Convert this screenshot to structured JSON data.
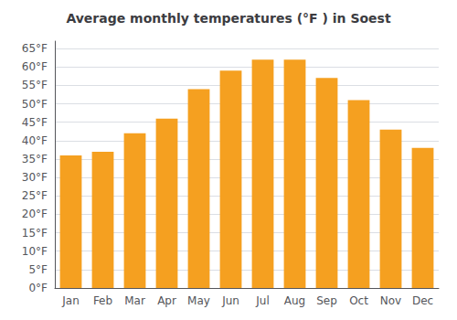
{
  "chart_data": {
    "type": "bar",
    "title": "Average monthly temperatures (°F ) in Soest",
    "categories": [
      "Jan",
      "Feb",
      "Mar",
      "Apr",
      "May",
      "Jun",
      "Jul",
      "Aug",
      "Sep",
      "Oct",
      "Nov",
      "Dec"
    ],
    "values": [
      36,
      37,
      42,
      46,
      54,
      59,
      62,
      62,
      57,
      51,
      43,
      38
    ],
    "color": "#F5A020",
    "ylim": [
      0,
      67
    ],
    "yticks": [
      {
        "value": 0,
        "label": "0°F"
      },
      {
        "value": 5,
        "label": "5°F"
      },
      {
        "value": 10,
        "label": "10°F"
      },
      {
        "value": 15,
        "label": "15°F"
      },
      {
        "value": 20,
        "label": "20°F"
      },
      {
        "value": 25,
        "label": "25°F"
      },
      {
        "value": 30,
        "label": "30°F"
      },
      {
        "value": 35,
        "label": "35°F"
      },
      {
        "value": 40,
        "label": "40°F"
      },
      {
        "value": 45,
        "label": "45°F"
      },
      {
        "value": 50,
        "label": "50°F"
      },
      {
        "value": 55,
        "label": "55°F"
      },
      {
        "value": 60,
        "label": "60°F"
      },
      {
        "value": 65,
        "label": "65°F"
      }
    ],
    "grid": true
  }
}
